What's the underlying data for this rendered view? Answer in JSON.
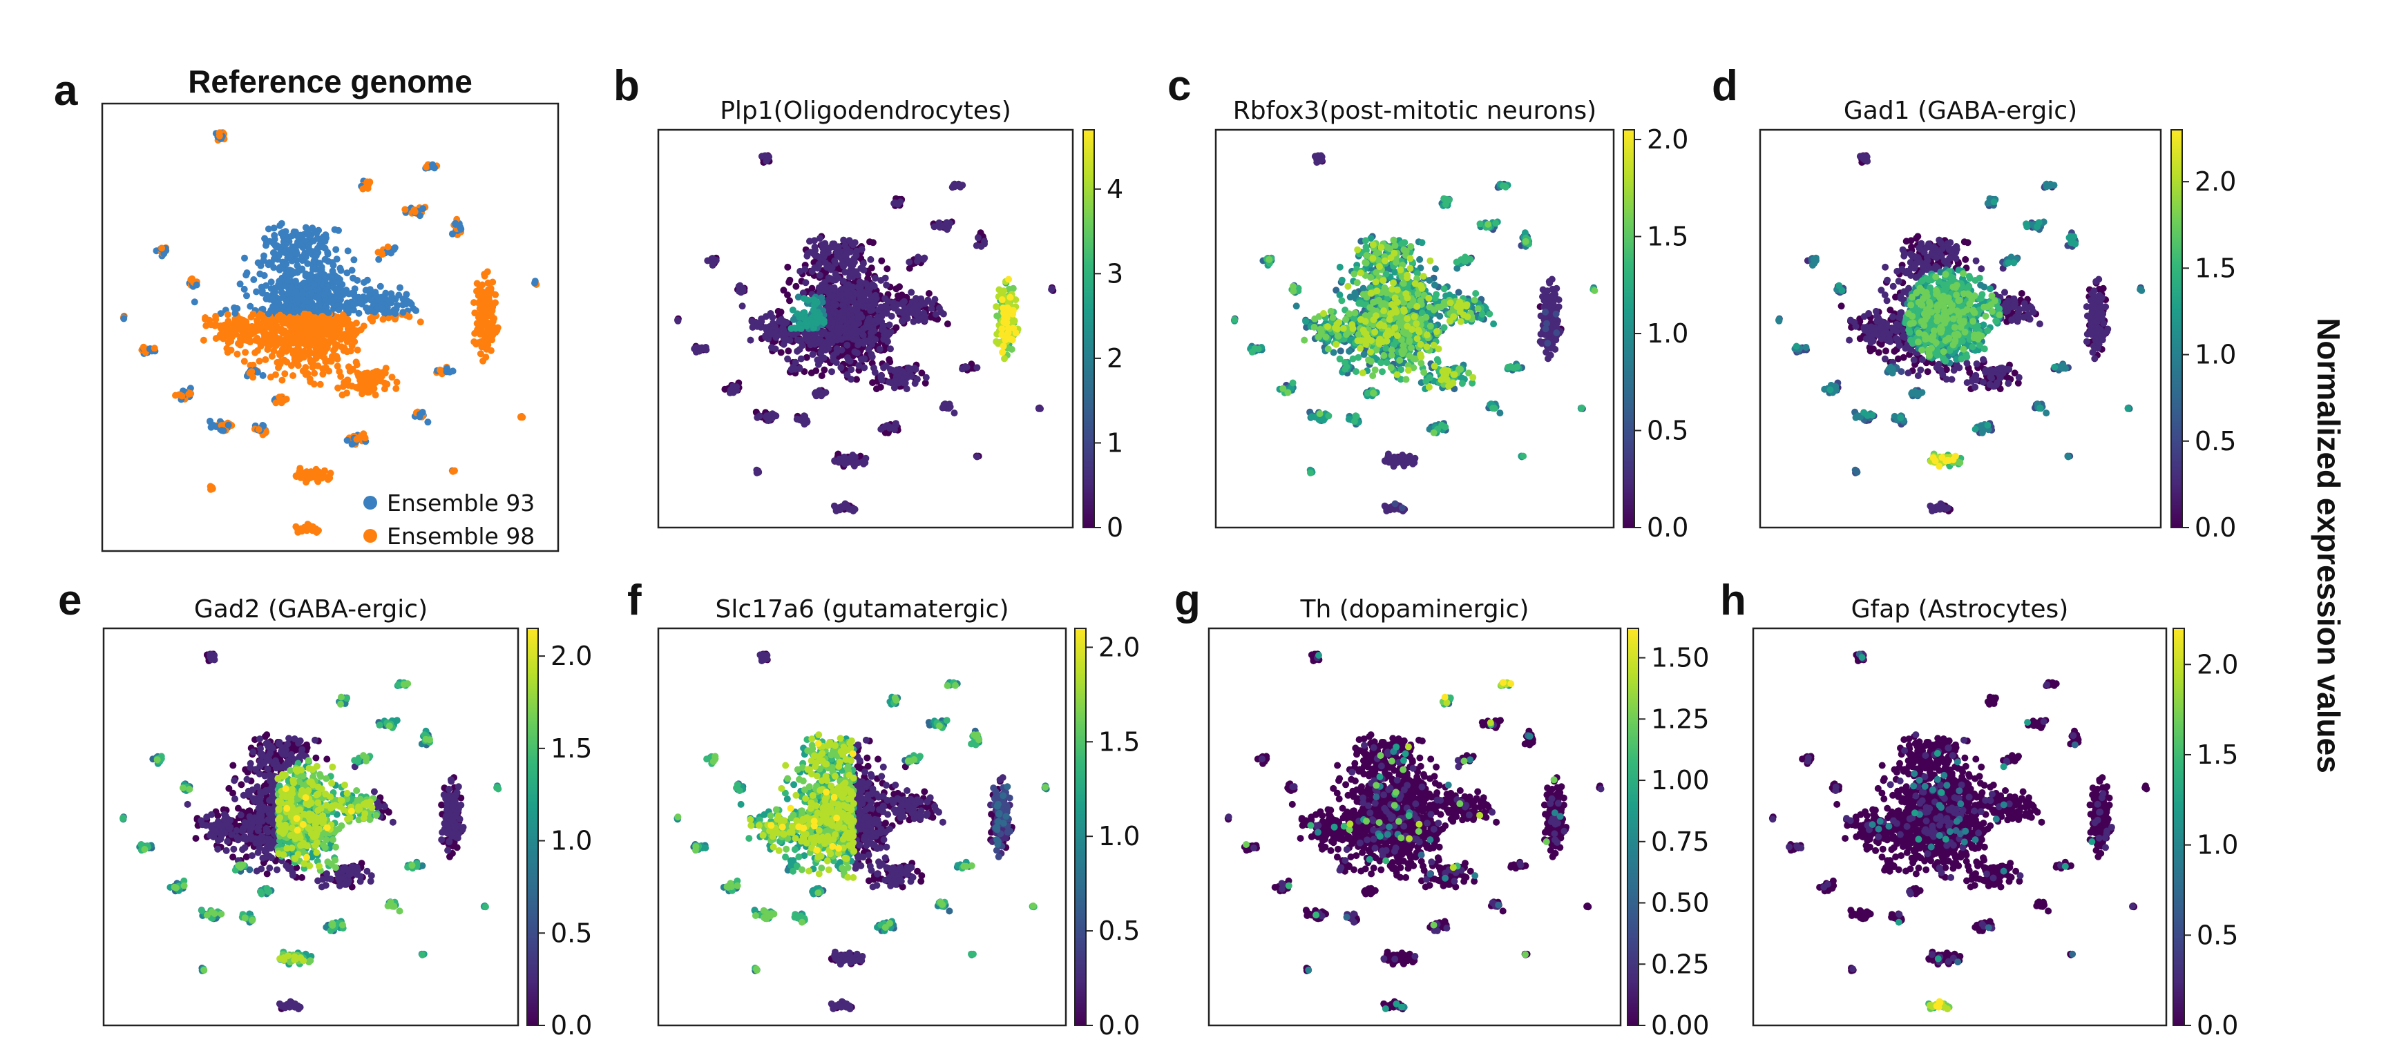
{
  "figure": {
    "side_label": "Normalized expression values"
  },
  "colormap": [
    "#440154",
    "#482878",
    "#3e4989",
    "#31688e",
    "#26828e",
    "#1f9e89",
    "#35b779",
    "#6ece58",
    "#b5de2b",
    "#fde725"
  ],
  "chart_data": [
    {
      "id": "a",
      "letter": "a",
      "type": "scatter",
      "title": "Reference genome",
      "legend": {
        "position": "bottom-right",
        "entries": [
          {
            "label": "Ensemble 93",
            "color": "#3a7fbf"
          },
          {
            "label": "Ensemble 98",
            "color": "#ff7f0e"
          }
        ]
      },
      "xlabel": "",
      "ylabel": ""
    },
    {
      "id": "b",
      "letter": "b",
      "type": "scatter",
      "title": "Plp1(Oligodendrocytes)",
      "colorbar": {
        "min": 0,
        "max": 4.7,
        "ticks": [
          0,
          1,
          2,
          3,
          4
        ],
        "tick_labels": [
          "0",
          "1",
          "2",
          "3",
          "4"
        ]
      },
      "highlight": "right-cluster"
    },
    {
      "id": "c",
      "letter": "c",
      "type": "scatter",
      "title": "Rbfox3(post-mitotic neurons)",
      "colorbar": {
        "min": 0,
        "max": 2.05,
        "ticks": [
          0,
          0.5,
          1.0,
          1.5,
          2.0
        ],
        "tick_labels": [
          "0.0",
          "0.5",
          "1.0",
          "1.5",
          "2.0"
        ]
      },
      "highlight": "core"
    },
    {
      "id": "d",
      "letter": "d",
      "type": "scatter",
      "title": "Gad1 (GABA-ergic)",
      "colorbar": {
        "min": 0,
        "max": 2.3,
        "ticks": [
          0,
          0.5,
          1.0,
          1.5,
          2.0
        ],
        "tick_labels": [
          "0.0",
          "0.5",
          "1.0",
          "1.5",
          "2.0"
        ]
      },
      "highlight": "center"
    },
    {
      "id": "e",
      "letter": "e",
      "type": "scatter",
      "title": "Gad2 (GABA-ergic)",
      "colorbar": {
        "min": 0,
        "max": 2.15,
        "ticks": [
          0,
          0.5,
          1.0,
          1.5,
          2.0
        ],
        "tick_labels": [
          "0.0",
          "0.5",
          "1.0",
          "1.5",
          "2.0"
        ]
      },
      "highlight": "center-right"
    },
    {
      "id": "f",
      "letter": "f",
      "type": "scatter",
      "title": "Slc17a6 (gutamatergic)",
      "colorbar": {
        "min": 0,
        "max": 2.1,
        "ticks": [
          0,
          0.5,
          1.0,
          1.5,
          2.0
        ],
        "tick_labels": [
          "0.0",
          "0.5",
          "1.0",
          "1.5",
          "2.0"
        ]
      },
      "highlight": "left-core"
    },
    {
      "id": "g",
      "letter": "g",
      "type": "scatter",
      "title": "Th (dopaminergic)",
      "colorbar": {
        "min": 0,
        "max": 1.62,
        "ticks": [
          0,
          0.25,
          0.5,
          0.75,
          1.0,
          1.25,
          1.5
        ],
        "tick_labels": [
          "0.00",
          "0.25",
          "0.50",
          "0.75",
          "1.00",
          "1.25",
          "1.50"
        ]
      },
      "highlight": "sparse"
    },
    {
      "id": "h",
      "letter": "h",
      "type": "scatter",
      "title": "Gfap (Astrocytes)",
      "colorbar": {
        "min": 0,
        "max": 2.2,
        "ticks": [
          0,
          0.5,
          1.0,
          1.5,
          2.0
        ],
        "tick_labels": [
          "0.0",
          "0.5",
          "1.0",
          "1.5",
          "2.0"
        ]
      },
      "highlight": "bottom-cluster"
    }
  ]
}
